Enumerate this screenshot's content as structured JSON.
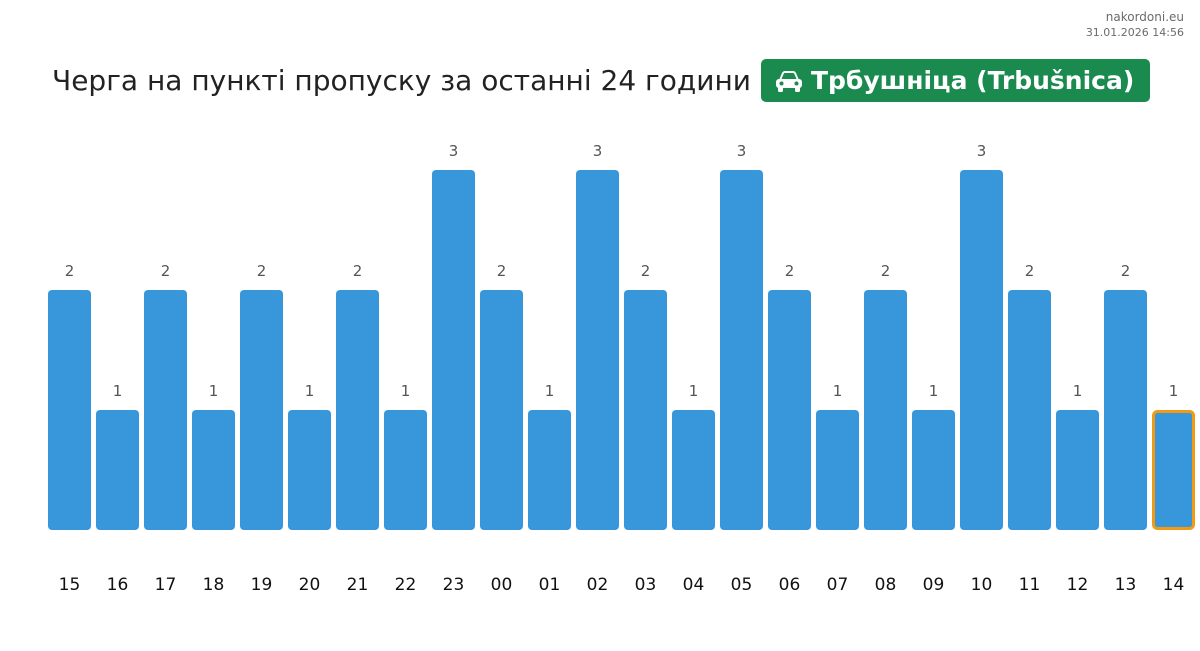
{
  "brand": {
    "site": "nakordoni.eu",
    "timestamp": "31.01.2026 14:56"
  },
  "header": {
    "title": "Черга на пункті пропуску за останні 24 години",
    "crossing_name": "Трбушніца (Trbušnica)",
    "crossing_icon": "car-icon"
  },
  "colors": {
    "bar": "#3897da",
    "highlight_border": "#f29a11",
    "badge": "#1a8a4f",
    "value_label": "#555555",
    "tick_label": "#111111"
  },
  "chart_data": {
    "type": "bar",
    "categories": [
      "15",
      "16",
      "17",
      "18",
      "19",
      "20",
      "21",
      "22",
      "23",
      "00",
      "01",
      "02",
      "03",
      "04",
      "05",
      "06",
      "07",
      "08",
      "09",
      "10",
      "11",
      "12",
      "13",
      "14"
    ],
    "values": [
      2,
      1,
      2,
      1,
      2,
      1,
      2,
      1,
      3,
      2,
      1,
      3,
      2,
      1,
      3,
      2,
      1,
      2,
      1,
      3,
      2,
      1,
      2,
      1
    ],
    "highlight_category": "14",
    "ylim": [
      0,
      3
    ],
    "grid": false,
    "data_labels": true
  }
}
